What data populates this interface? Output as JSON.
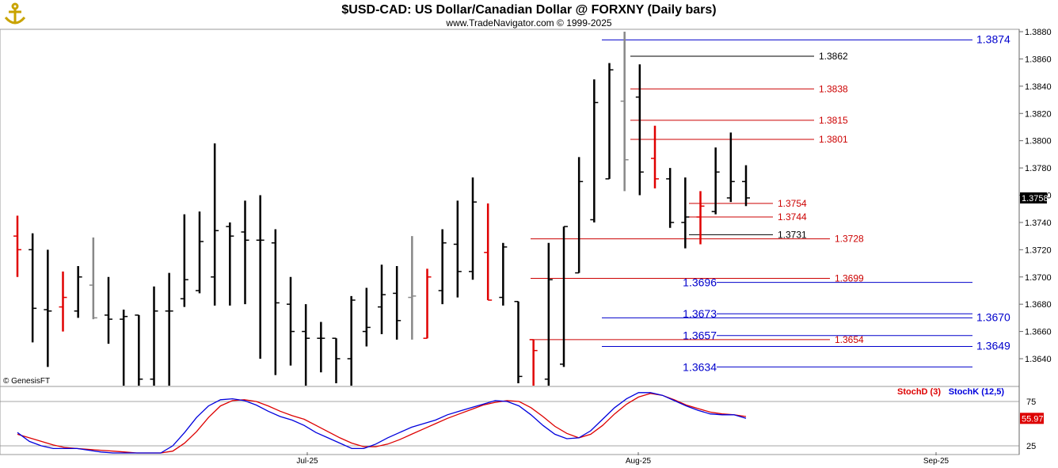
{
  "header": {
    "title": "$USD-CAD:  US Dollar/Canadian Dollar @ FORXNY  (Daily bars)",
    "subtitle": "www.TradeNavigator.com © 1999-2025",
    "watermark": "© GenesisFT",
    "logo_icon": "anchor-icon"
  },
  "colors": {
    "bar_up": "#000000",
    "bar_down": "#e00000",
    "bar_neutral": "#888888",
    "blue_level": "#0000cc",
    "red_level": "#cc0000",
    "stoch_d": "#dd0000",
    "stoch_k": "#0000dd",
    "last_price_bg": "#000000",
    "stoch_value_bg": "#dd0000"
  },
  "chart_data": [
    {
      "type": "ohlc",
      "ylim": [
        1.362,
        1.388
      ],
      "y_ticks": [
        "1.3880",
        "1.3860",
        "1.3840",
        "1.3820",
        "1.3800",
        "1.3780",
        "1.3760",
        "1.3740",
        "1.3720",
        "1.3700",
        "1.3680",
        "1.3660",
        "1.3640"
      ],
      "x_labels": [
        "Jul-25",
        "Aug-25",
        "Sep-25"
      ],
      "last_price": "1.3758",
      "bars": [
        {
          "o": 1.373,
          "h": 1.3745,
          "l": 1.37,
          "c": 1.372,
          "color": "down"
        },
        {
          "o": 1.372,
          "h": 1.3732,
          "l": 1.3652,
          "c": 1.3677,
          "color": "up"
        },
        {
          "o": 1.3676,
          "h": 1.372,
          "l": 1.3634,
          "c": 1.3675,
          "color": "up"
        },
        {
          "o": 1.3678,
          "h": 1.3704,
          "l": 1.366,
          "c": 1.3685,
          "color": "down"
        },
        {
          "o": 1.3675,
          "h": 1.3708,
          "l": 1.367,
          "c": 1.37,
          "color": "up"
        },
        {
          "o": 1.3694,
          "h": 1.3729,
          "l": 1.3669,
          "c": 1.367,
          "color": "neutral"
        },
        {
          "o": 1.3672,
          "h": 1.37,
          "l": 1.3651,
          "c": 1.3669,
          "color": "up"
        },
        {
          "o": 1.3669,
          "h": 1.3676,
          "l": 1.3615,
          "c": 1.3671,
          "color": "up"
        },
        {
          "o": 1.3672,
          "h": 1.3672,
          "l": 1.361,
          "c": 1.3625,
          "color": "up"
        },
        {
          "o": 1.3625,
          "h": 1.3693,
          "l": 1.3615,
          "c": 1.3675,
          "color": "up"
        },
        {
          "o": 1.3675,
          "h": 1.3703,
          "l": 1.362,
          "c": 1.3675,
          "color": "up"
        },
        {
          "o": 1.3684,
          "h": 1.3746,
          "l": 1.3678,
          "c": 1.3698,
          "color": "up"
        },
        {
          "o": 1.369,
          "h": 1.3748,
          "l": 1.3688,
          "c": 1.3726,
          "color": "up"
        },
        {
          "o": 1.37,
          "h": 1.3798,
          "l": 1.3679,
          "c": 1.3734,
          "color": "up"
        },
        {
          "o": 1.3737,
          "h": 1.374,
          "l": 1.3679,
          "c": 1.373,
          "color": "up"
        },
        {
          "o": 1.3733,
          "h": 1.3756,
          "l": 1.368,
          "c": 1.3727,
          "color": "up"
        },
        {
          "o": 1.3727,
          "h": 1.376,
          "l": 1.364,
          "c": 1.3727,
          "color": "up"
        },
        {
          "o": 1.3725,
          "h": 1.3735,
          "l": 1.3628,
          "c": 1.3681,
          "color": "up"
        },
        {
          "o": 1.368,
          "h": 1.37,
          "l": 1.3635,
          "c": 1.366,
          "color": "up"
        },
        {
          "o": 1.366,
          "h": 1.368,
          "l": 1.362,
          "c": 1.3655,
          "color": "up"
        },
        {
          "o": 1.3655,
          "h": 1.3667,
          "l": 1.363,
          "c": 1.3655,
          "color": "up"
        },
        {
          "o": 1.3655,
          "h": 1.3655,
          "l": 1.3622,
          "c": 1.364,
          "color": "up"
        },
        {
          "o": 1.364,
          "h": 1.3686,
          "l": 1.362,
          "c": 1.3683,
          "color": "up"
        },
        {
          "o": 1.366,
          "h": 1.3692,
          "l": 1.3649,
          "c": 1.3663,
          "color": "up"
        },
        {
          "o": 1.3678,
          "h": 1.3709,
          "l": 1.3658,
          "c": 1.3687,
          "color": "up"
        },
        {
          "o": 1.3688,
          "h": 1.3708,
          "l": 1.3654,
          "c": 1.3668,
          "color": "up"
        },
        {
          "o": 1.3685,
          "h": 1.373,
          "l": 1.3654,
          "c": 1.3686,
          "color": "neutral"
        },
        {
          "o": 1.3655,
          "h": 1.3706,
          "l": 1.3655,
          "c": 1.37,
          "color": "down"
        },
        {
          "o": 1.369,
          "h": 1.3735,
          "l": 1.368,
          "c": 1.3725,
          "color": "up"
        },
        {
          "o": 1.3724,
          "h": 1.3756,
          "l": 1.3685,
          "c": 1.3704,
          "color": "up"
        },
        {
          "o": 1.3704,
          "h": 1.3773,
          "l": 1.3698,
          "c": 1.3755,
          "color": "up"
        },
        {
          "o": 1.3718,
          "h": 1.3754,
          "l": 1.3683,
          "c": 1.3683,
          "color": "down"
        },
        {
          "o": 1.3685,
          "h": 1.3725,
          "l": 1.3679,
          "c": 1.3722,
          "color": "up"
        },
        {
          "o": 1.3682,
          "h": 1.3682,
          "l": 1.3622,
          "c": 1.3627,
          "color": "up"
        },
        {
          "o": 1.3654,
          "h": 1.3654,
          "l": 1.3618,
          "c": 1.3646,
          "color": "down"
        },
        {
          "o": 1.3625,
          "h": 1.3725,
          "l": 1.3615,
          "c": 1.3698,
          "color": "up"
        },
        {
          "o": 1.3636,
          "h": 1.3737,
          "l": 1.3634,
          "c": 1.3737,
          "color": "up"
        },
        {
          "o": 1.3703,
          "h": 1.3788,
          "l": 1.3703,
          "c": 1.377,
          "color": "up"
        },
        {
          "o": 1.3742,
          "h": 1.3845,
          "l": 1.374,
          "c": 1.3828,
          "color": "up"
        },
        {
          "o": 1.3772,
          "h": 1.3857,
          "l": 1.3772,
          "c": 1.3852,
          "color": "up"
        },
        {
          "o": 1.3829,
          "h": 1.388,
          "l": 1.3763,
          "c": 1.3786,
          "color": "neutral"
        },
        {
          "o": 1.3832,
          "h": 1.3856,
          "l": 1.376,
          "c": 1.3777,
          "color": "up"
        },
        {
          "o": 1.3787,
          "h": 1.3811,
          "l": 1.3765,
          "c": 1.3772,
          "color": "down"
        },
        {
          "o": 1.3772,
          "h": 1.378,
          "l": 1.3736,
          "c": 1.374,
          "color": "up"
        },
        {
          "o": 1.374,
          "h": 1.3773,
          "l": 1.3721,
          "c": 1.3744,
          "color": "up"
        },
        {
          "o": 1.3744,
          "h": 1.3763,
          "l": 1.3724,
          "c": 1.3752,
          "color": "down"
        },
        {
          "o": 1.3748,
          "h": 1.3795,
          "l": 1.3746,
          "c": 1.3777,
          "color": "up"
        },
        {
          "o": 1.3758,
          "h": 1.3806,
          "l": 1.3755,
          "c": 1.377,
          "color": "up"
        },
        {
          "o": 1.377,
          "h": 1.3782,
          "l": 1.3752,
          "c": 1.3758,
          "color": "up"
        }
      ],
      "levels": [
        {
          "value": 1.3874,
          "label": "1.3874",
          "color": "blue",
          "side": "right"
        },
        {
          "value": 1.3862,
          "label": "1.3862",
          "color": "black",
          "side": "end"
        },
        {
          "value": 1.3838,
          "label": "1.3838",
          "color": "red",
          "side": "end"
        },
        {
          "value": 1.3815,
          "label": "1.3815",
          "color": "red",
          "side": "end"
        },
        {
          "value": 1.3801,
          "label": "1.3801",
          "color": "red",
          "side": "end"
        },
        {
          "value": 1.3754,
          "label": "1.3754",
          "color": "red",
          "side": "end"
        },
        {
          "value": 1.3744,
          "label": "1.3744",
          "color": "red",
          "side": "end"
        },
        {
          "value": 1.3731,
          "label": "1.3731",
          "color": "black",
          "side": "end"
        },
        {
          "value": 1.3728,
          "label": "1.3728",
          "color": "red",
          "side": "end"
        },
        {
          "value": 1.3699,
          "label": "1.3699",
          "color": "red",
          "side": "end"
        },
        {
          "value": 1.3696,
          "label": "1.3696",
          "color": "blue",
          "side": "left"
        },
        {
          "value": 1.3673,
          "label": "1.3673",
          "color": "blue",
          "side": "left"
        },
        {
          "value": 1.367,
          "label": "1.3670",
          "color": "blue",
          "side": "right"
        },
        {
          "value": 1.3657,
          "label": "1.3657",
          "color": "blue",
          "side": "left"
        },
        {
          "value": 1.3654,
          "label": "1.3654",
          "color": "red",
          "side": "end"
        },
        {
          "value": 1.3649,
          "label": "1.3649",
          "color": "blue",
          "side": "right"
        },
        {
          "value": 1.3634,
          "label": "1.3634",
          "color": "blue",
          "side": "left"
        }
      ]
    },
    {
      "type": "line",
      "title": "",
      "ylim": [
        15,
        90
      ],
      "y_ticks": [
        "75",
        "25"
      ],
      "legend_placement": "top-right",
      "last_value": "55.97",
      "series": [
        {
          "name": "StochD (3)",
          "values": [
            38,
            34,
            30,
            26,
            23,
            22,
            21,
            20,
            19,
            18,
            16,
            15,
            15,
            19,
            28,
            41,
            57,
            70,
            76,
            77,
            75,
            70,
            64,
            59,
            55,
            48,
            41,
            34,
            28,
            24,
            24,
            27,
            32,
            38,
            44,
            50,
            56,
            61,
            66,
            71,
            74,
            76,
            75,
            68,
            58,
            47,
            39,
            34,
            38,
            48,
            61,
            72,
            80,
            84,
            82,
            77,
            71,
            67,
            63,
            61,
            60,
            58
          ]
        },
        {
          "name": "StochK (12,5)",
          "values": [
            40,
            30,
            25,
            22,
            22,
            22,
            20,
            18,
            16,
            15,
            14,
            14,
            16,
            25,
            40,
            57,
            70,
            77,
            78,
            76,
            71,
            64,
            58,
            54,
            48,
            40,
            34,
            28,
            22,
            22,
            27,
            34,
            40,
            46,
            50,
            54,
            60,
            64,
            68,
            72,
            76,
            75,
            70,
            60,
            48,
            38,
            33,
            34,
            42,
            55,
            68,
            78,
            85,
            85,
            82,
            76,
            70,
            65,
            61,
            60,
            60,
            56
          ]
        }
      ]
    }
  ]
}
